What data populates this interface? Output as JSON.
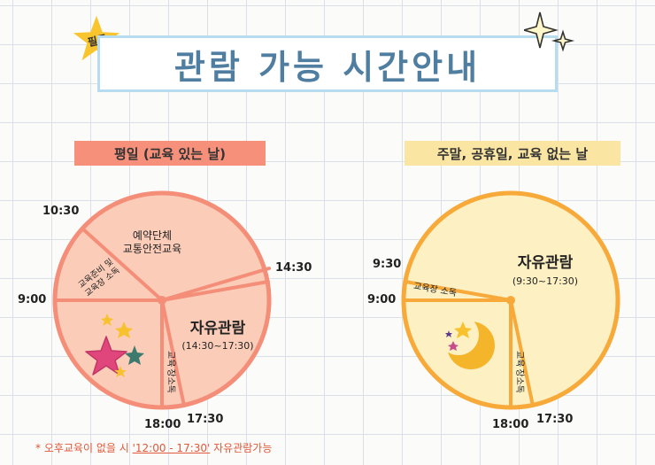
{
  "badge": "필독",
  "title": "관람 가능 시간안내",
  "weekday": {
    "label": "평일 (교육 있는 날)",
    "segments": {
      "reserved_line1": "예약단체",
      "reserved_line2": "교통안전교육",
      "prep_line1": "교육준비 및",
      "prep_line2": "교육장 소독",
      "free_title": "자유관람",
      "free_time": "(14:30~17:30)",
      "clean_line1": "교육",
      "clean_line2": "장소독"
    },
    "times": {
      "t1030": "10:30",
      "t0900": "9:00",
      "t1430": "14:30",
      "t1800": "18:00",
      "t1730": "17:30"
    }
  },
  "weekend": {
    "label": "주말, 공휴일, 교육 없는 날",
    "segments": {
      "free_title": "자유관람",
      "free_time": "(9:30~17:30)",
      "prep": "교육장 소독",
      "clean_line1": "교육",
      "clean_line2": "장소독"
    },
    "times": {
      "t0930": "9:30",
      "t0900": "9:00",
      "t1800": "18:00",
      "t1730": "17:30"
    }
  },
  "note": {
    "prefix": "* 오후교육이 없을 시 ",
    "highlight": "'12:00 - 17:30'",
    "suffix": " 자유관람가능"
  },
  "colors": {
    "weekday_fill": "#fbcdb9",
    "weekday_stroke": "#f48e79",
    "weekend_fill": "#fdf0c3",
    "weekend_stroke": "#f7a93a",
    "title_text": "#4f7ea1"
  }
}
